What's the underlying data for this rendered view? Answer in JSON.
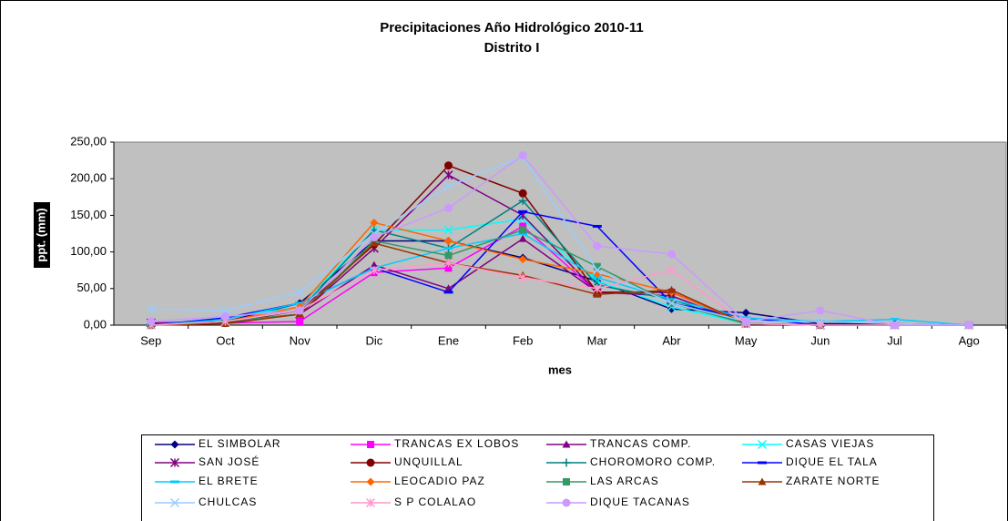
{
  "chart_data": {
    "type": "line",
    "title": "Precipitaciones Año Hidrológico 2010-11",
    "subtitle": "Distrito I",
    "y_label": "ppt. (mm)",
    "x_label": "mes",
    "categories": [
      "Sep",
      "Oct",
      "Nov",
      "Dic",
      "Ene",
      "Feb",
      "Mar",
      "Abr",
      "May",
      "Jun",
      "Jul",
      "Ago"
    ],
    "ylim": [
      0,
      250
    ],
    "yticks": [
      {
        "value": 0,
        "label": "0,00"
      },
      {
        "value": 50,
        "label": "50,00"
      },
      {
        "value": 100,
        "label": "100,00"
      },
      {
        "value": 150,
        "label": "150,00"
      },
      {
        "value": 200,
        "label": "200,00"
      },
      {
        "value": 250,
        "label": "250,00"
      }
    ],
    "grid": false,
    "legend": "bottom",
    "series": [
      {
        "name": "EL SIMBOLAR",
        "color": "#000080",
        "marker": "diamond",
        "values": [
          2,
          5,
          30,
          115,
          115,
          92,
          60,
          22,
          17,
          2,
          2,
          0
        ]
      },
      {
        "name": "TRANCAS EX LOBOS",
        "color": "#FF00FF",
        "marker": "square",
        "values": [
          0,
          3,
          5,
          72,
          78,
          135,
          45,
          45,
          2,
          0,
          0,
          0
        ]
      },
      {
        "name": "TRANCAS COMP.",
        "color": "#800080",
        "marker": "triangle",
        "values": [
          0,
          3,
          15,
          82,
          50,
          118,
          45,
          40,
          2,
          0,
          0,
          0
        ]
      },
      {
        "name": "CASAS VIEJAS",
        "color": "#00FFFF",
        "marker": "x",
        "values": [
          0,
          10,
          25,
          130,
          130,
          145,
          60,
          25,
          2,
          0,
          0,
          0
        ]
      },
      {
        "name": "SAN JOSÉ",
        "color": "#800080",
        "marker": "star",
        "values": [
          3,
          5,
          15,
          105,
          205,
          150,
          45,
          40,
          2,
          0,
          0,
          0
        ]
      },
      {
        "name": "UNQUILLAL",
        "color": "#800000",
        "marker": "circle",
        "values": [
          0,
          3,
          20,
          110,
          218,
          180,
          45,
          45,
          2,
          0,
          0,
          0
        ]
      },
      {
        "name": "CHOROMORO COMP.",
        "color": "#008080",
        "marker": "plus",
        "values": [
          0,
          5,
          20,
          130,
          105,
          170,
          55,
          35,
          2,
          0,
          0,
          0
        ]
      },
      {
        "name": "DIQUE EL TALA",
        "color": "#0000FF",
        "marker": "dash",
        "values": [
          0,
          10,
          30,
          78,
          45,
          155,
          135,
          30,
          10,
          0,
          0,
          0
        ]
      },
      {
        "name": "EL BRETE",
        "color": "#00CCFF",
        "marker": "dash",
        "values": [
          0,
          8,
          30,
          78,
          105,
          125,
          65,
          35,
          10,
          5,
          8,
          0
        ]
      },
      {
        "name": "LEOCADIO PAZ",
        "color": "#FF6600",
        "marker": "diamond",
        "values": [
          0,
          5,
          25,
          140,
          115,
          90,
          70,
          45,
          2,
          0,
          0,
          0
        ]
      },
      {
        "name": "LAS ARCAS",
        "color": "#339966",
        "marker": "square",
        "values": [
          0,
          5,
          15,
          115,
          95,
          130,
          80,
          30,
          2,
          0,
          0,
          0
        ]
      },
      {
        "name": "ZARATE NORTE",
        "color": "#993300",
        "marker": "triangle",
        "values": [
          0,
          2,
          15,
          112,
          85,
          68,
          42,
          48,
          2,
          0,
          0,
          0
        ]
      },
      {
        "name": "CHULCAS",
        "color": "#99CCFF",
        "marker": "x",
        "values": [
          22,
          20,
          45,
          125,
          190,
          230,
          75,
          30,
          5,
          5,
          2,
          0
        ]
      },
      {
        "name": "S P COLALAO",
        "color": "#FF99CC",
        "marker": "star",
        "values": [
          0,
          5,
          20,
          75,
          85,
          65,
          50,
          75,
          2,
          0,
          0,
          0
        ]
      },
      {
        "name": "DIQUE TACANAS",
        "color": "#CC99FF",
        "marker": "circle",
        "values": [
          5,
          12,
          20,
          120,
          160,
          232,
          108,
          97,
          5,
          20,
          0,
          0
        ]
      }
    ]
  }
}
